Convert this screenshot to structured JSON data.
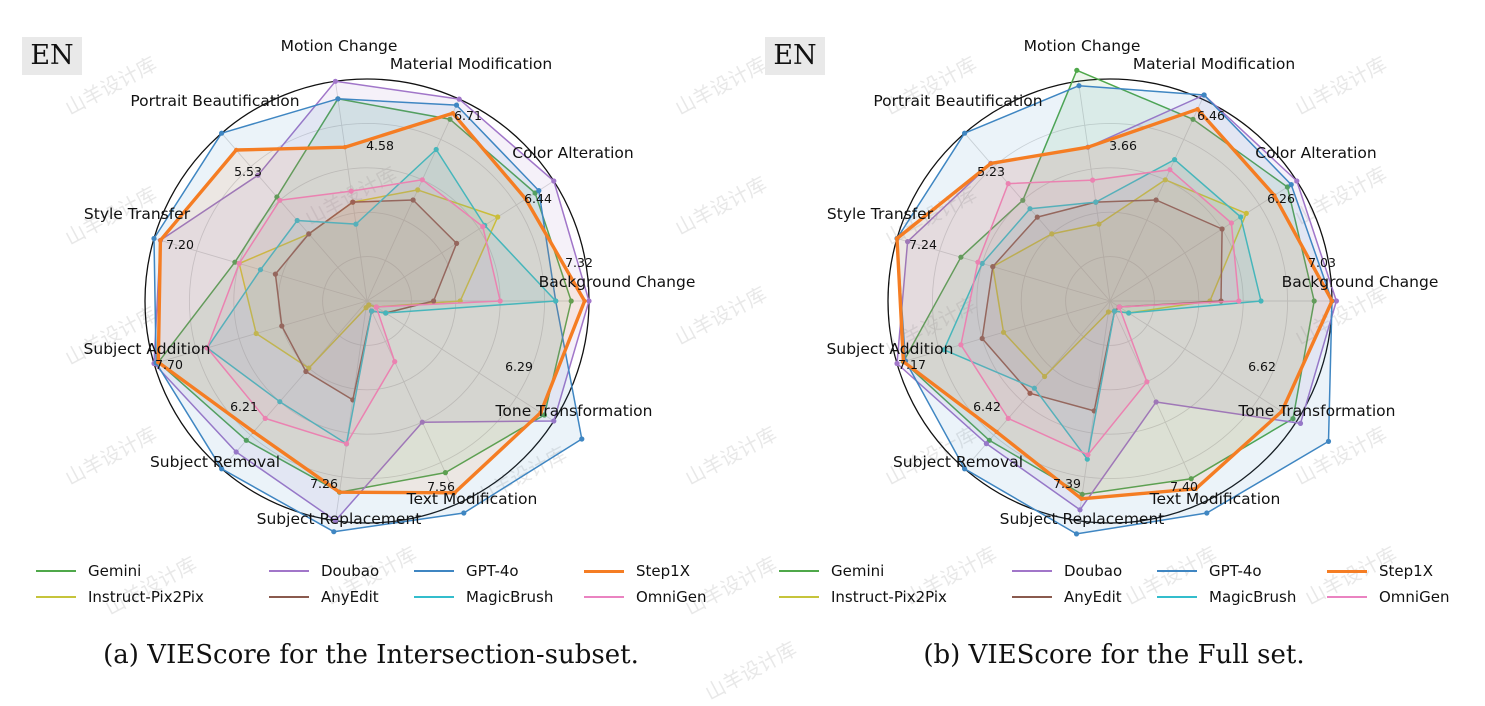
{
  "page": {
    "lang_badge": "EN",
    "watermark": "山羊设计库"
  },
  "legend_colors": {
    "Gemini": "#4fa84a",
    "Doubao": "#a176c9",
    "GPT-4o": "#3f86c2",
    "Step1X": "#f57d23",
    "Instruct-Pix2Pix": "#c6c43b",
    "AnyEdit": "#8a5a4e",
    "MagicBrush": "#33bdcc",
    "OmniGen": "#ea83c1"
  },
  "legend_order": [
    "Gemini",
    "Doubao",
    "GPT-4o",
    "Step1X",
    "Instruct-Pix2Pix",
    "AnyEdit",
    "MagicBrush",
    "OmniGen"
  ],
  "chart_data": [
    {
      "type": "radar",
      "caption": "(a) VIEScore for the Intersection-subset.",
      "categories": [
        "Background Change",
        "Color Alteration",
        "Material Modification",
        "Motion Change",
        "Portrait Beautification",
        "Style Transfer",
        "Subject Addition",
        "Subject Removal",
        "Subject Replacement",
        "Text Modification",
        "Tone Transformation"
      ],
      "category_max": [
        7.32,
        6.44,
        6.71,
        4.58,
        5.53,
        7.2,
        7.7,
        6.21,
        7.26,
        7.56,
        6.29
      ],
      "series": [
        {
          "name": "Gemini",
          "values": [
            0.92,
            0.9,
            0.9,
            0.92,
            0.62,
            0.62,
            0.98,
            0.83,
            0.87,
            0.85,
            0.95
          ]
        },
        {
          "name": "Doubao",
          "values": [
            1.0,
            1.0,
            1.0,
            1.0,
            0.75,
            0.97,
            1.0,
            0.9,
            1.0,
            0.6,
            1.0
          ]
        },
        {
          "name": "GPT-4o",
          "values": [
            0.85,
            0.92,
            0.97,
            0.92,
            1.0,
            1.0,
            0.99,
            1.0,
            1.05,
            1.05,
            1.15
          ]
        },
        {
          "name": "Step1X",
          "values": [
            0.98,
            0.85,
            0.93,
            0.7,
            0.9,
            0.97,
            0.98,
            0.78,
            0.87,
            0.95,
            0.93
          ]
        },
        {
          "name": "Instruct-Pix2Pix",
          "values": [
            0.42,
            0.7,
            0.55,
            0.45,
            0.4,
            0.6,
            0.52,
            0.4,
            0.03,
            0.02,
            0.05
          ]
        },
        {
          "name": "AnyEdit",
          "values": [
            0.3,
            0.48,
            0.5,
            0.45,
            0.4,
            0.43,
            0.4,
            0.42,
            0.45,
            0.05,
            0.1
          ]
        },
        {
          "name": "MagicBrush",
          "values": [
            0.85,
            0.63,
            0.75,
            0.35,
            0.48,
            0.5,
            0.75,
            0.6,
            0.65,
            0.05,
            0.1
          ]
        },
        {
          "name": "OmniGen",
          "values": [
            0.6,
            0.62,
            0.6,
            0.5,
            0.6,
            0.6,
            0.75,
            0.7,
            0.65,
            0.3,
            0.05
          ]
        }
      ]
    },
    {
      "type": "radar",
      "caption": "(b) VIEScore for the Full set.",
      "categories": [
        "Background Change",
        "Color Alteration",
        "Material Modification",
        "Motion Change",
        "Portrait Beautification",
        "Style Transfer",
        "Subject Addition",
        "Subject Removal",
        "Subject Replacement",
        "Text Modification",
        "Tone Transformation"
      ],
      "category_max": [
        7.03,
        6.26,
        6.46,
        3.66,
        5.23,
        7.24,
        7.17,
        6.42,
        7.39,
        7.4,
        6.62
      ],
      "series": [
        {
          "name": "Gemini",
          "values": [
            0.92,
            0.95,
            0.9,
            1.05,
            0.6,
            0.7,
            0.97,
            0.83,
            0.88,
            0.88,
            0.98
          ]
        },
        {
          "name": "Doubao",
          "values": [
            1.02,
            1.0,
            1.02,
            0.7,
            0.82,
            0.95,
            1.0,
            0.85,
            0.95,
            0.5,
            1.02
          ]
        },
        {
          "name": "GPT-4o",
          "values": [
            1.0,
            0.97,
            1.02,
            0.98,
            1.0,
            1.0,
            0.96,
            1.0,
            1.06,
            1.05,
            1.17
          ]
        },
        {
          "name": "Step1X",
          "values": [
            1.0,
            0.88,
            0.95,
            0.7,
            0.82,
            1.0,
            0.97,
            0.78,
            0.9,
            0.93,
            0.92
          ]
        },
        {
          "name": "Instruct-Pix2Pix",
          "values": [
            0.45,
            0.73,
            0.6,
            0.35,
            0.4,
            0.55,
            0.5,
            0.45,
            0.05,
            0.05,
            0.1
          ]
        },
        {
          "name": "AnyEdit",
          "values": [
            0.5,
            0.6,
            0.5,
            0.45,
            0.5,
            0.55,
            0.6,
            0.55,
            0.5,
            0.05,
            0.05
          ]
        },
        {
          "name": "MagicBrush",
          "values": [
            0.68,
            0.7,
            0.7,
            0.45,
            0.55,
            0.6,
            0.78,
            0.52,
            0.72,
            0.05,
            0.1
          ]
        },
        {
          "name": "OmniGen",
          "values": [
            0.58,
            0.65,
            0.65,
            0.55,
            0.7,
            0.62,
            0.7,
            0.7,
            0.7,
            0.4,
            0.05
          ]
        }
      ]
    }
  ]
}
